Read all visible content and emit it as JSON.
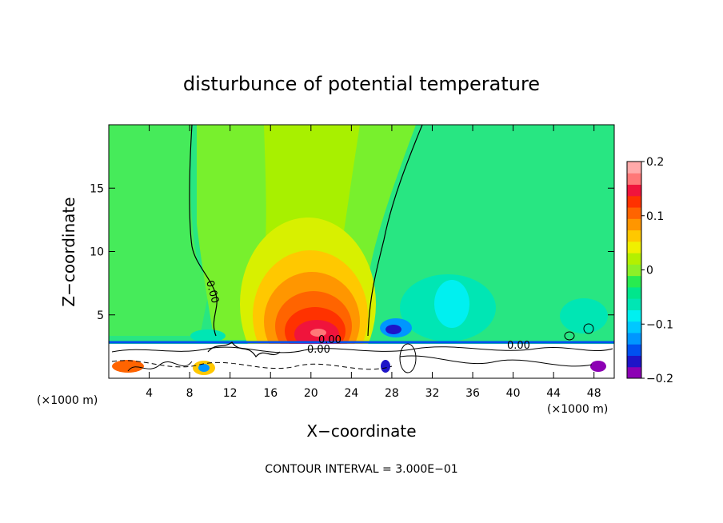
{
  "chart_data": {
    "type": "heatmap",
    "title": "disturbunce of potential temperature",
    "xlabel": "X−coordinate",
    "ylabel": "Z−coordinate",
    "x_unit": "(×1000 m)",
    "x_unit_right": "(×1000 m)",
    "xlim": [
      0,
      50
    ],
    "ylim": [
      0,
      20
    ],
    "x_ticks": [
      4,
      8,
      12,
      16,
      20,
      24,
      28,
      32,
      36,
      40,
      44,
      48
    ],
    "y_ticks": [
      5,
      10,
      15
    ],
    "x_tick_labels": [
      "4",
      "8",
      "12",
      "16",
      "20",
      "24",
      "28",
      "32",
      "36",
      "40",
      "44",
      "48"
    ],
    "y_tick_labels": [
      "5",
      "10",
      "15"
    ],
    "contour_interval_text": "CONTOUR INTERVAL = 3.000E−01",
    "contour_labels": [
      "0.00",
      "0.00",
      "0.00",
      "0.00"
    ],
    "colorbar": {
      "range": [
        -0.2,
        0.2
      ],
      "tick_values": [
        0.2,
        0.1,
        0,
        -0.1,
        -0.2
      ],
      "tick_labels": [
        "0.2",
        "0.1",
        "0",
        "−0.1",
        "−0.2"
      ],
      "colors": [
        "#8c00b4",
        "#1e14c8",
        "#0050f0",
        "#0096ff",
        "#00c8ff",
        "#00f0f0",
        "#00e6b4",
        "#00e68c",
        "#28eb50",
        "#8cf028",
        "#b4f000",
        "#f0f000",
        "#ffc800",
        "#ff9600",
        "#ff6400",
        "#ff3200",
        "#f0143c",
        "#ff7878",
        "#ffaaaa"
      ]
    },
    "grid": false,
    "legend": "colorbar-right"
  },
  "colors": {
    "background": "#28e682",
    "ground": "#ffffff"
  }
}
